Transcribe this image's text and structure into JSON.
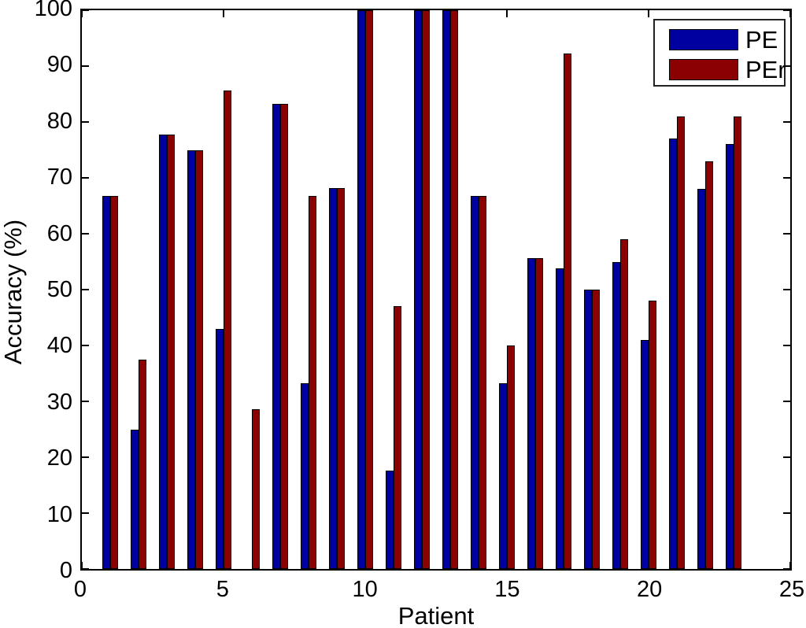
{
  "chart_data": {
    "type": "bar",
    "title": "",
    "xlabel": "Patient",
    "ylabel": "Accuracy (%)",
    "xlim": [
      0,
      25
    ],
    "ylim": [
      0,
      100
    ],
    "xticks": [
      0,
      5,
      10,
      15,
      20,
      25
    ],
    "yticks": [
      0,
      10,
      20,
      30,
      40,
      50,
      60,
      70,
      80,
      90,
      100
    ],
    "grid": false,
    "legend_position": "top-right",
    "bar_unit_width": 0.29,
    "categories": [
      1,
      2,
      3,
      4,
      5,
      6,
      7,
      8,
      9,
      10,
      11,
      12,
      13,
      14,
      15,
      16,
      17,
      18,
      19,
      20,
      21,
      22,
      23
    ],
    "series": [
      {
        "name": "PE",
        "color": "#0000A0",
        "values": [
          66.7,
          25.0,
          77.8,
          75.0,
          42.9,
          0,
          83.3,
          33.3,
          68.2,
          100,
          17.6,
          100,
          100,
          66.7,
          33.3,
          55.6,
          53.8,
          50.0,
          55.0,
          41.0,
          77.0,
          68.0,
          76.0
        ]
      },
      {
        "name": "PEr",
        "color": "#8B0000",
        "values": [
          66.7,
          37.5,
          77.8,
          75.0,
          85.7,
          28.6,
          83.3,
          66.7,
          68.2,
          100,
          47.1,
          100,
          100,
          66.7,
          40.0,
          55.6,
          92.3,
          50.0,
          59.0,
          48.0,
          81.0,
          73.0,
          81.0
        ]
      }
    ]
  }
}
